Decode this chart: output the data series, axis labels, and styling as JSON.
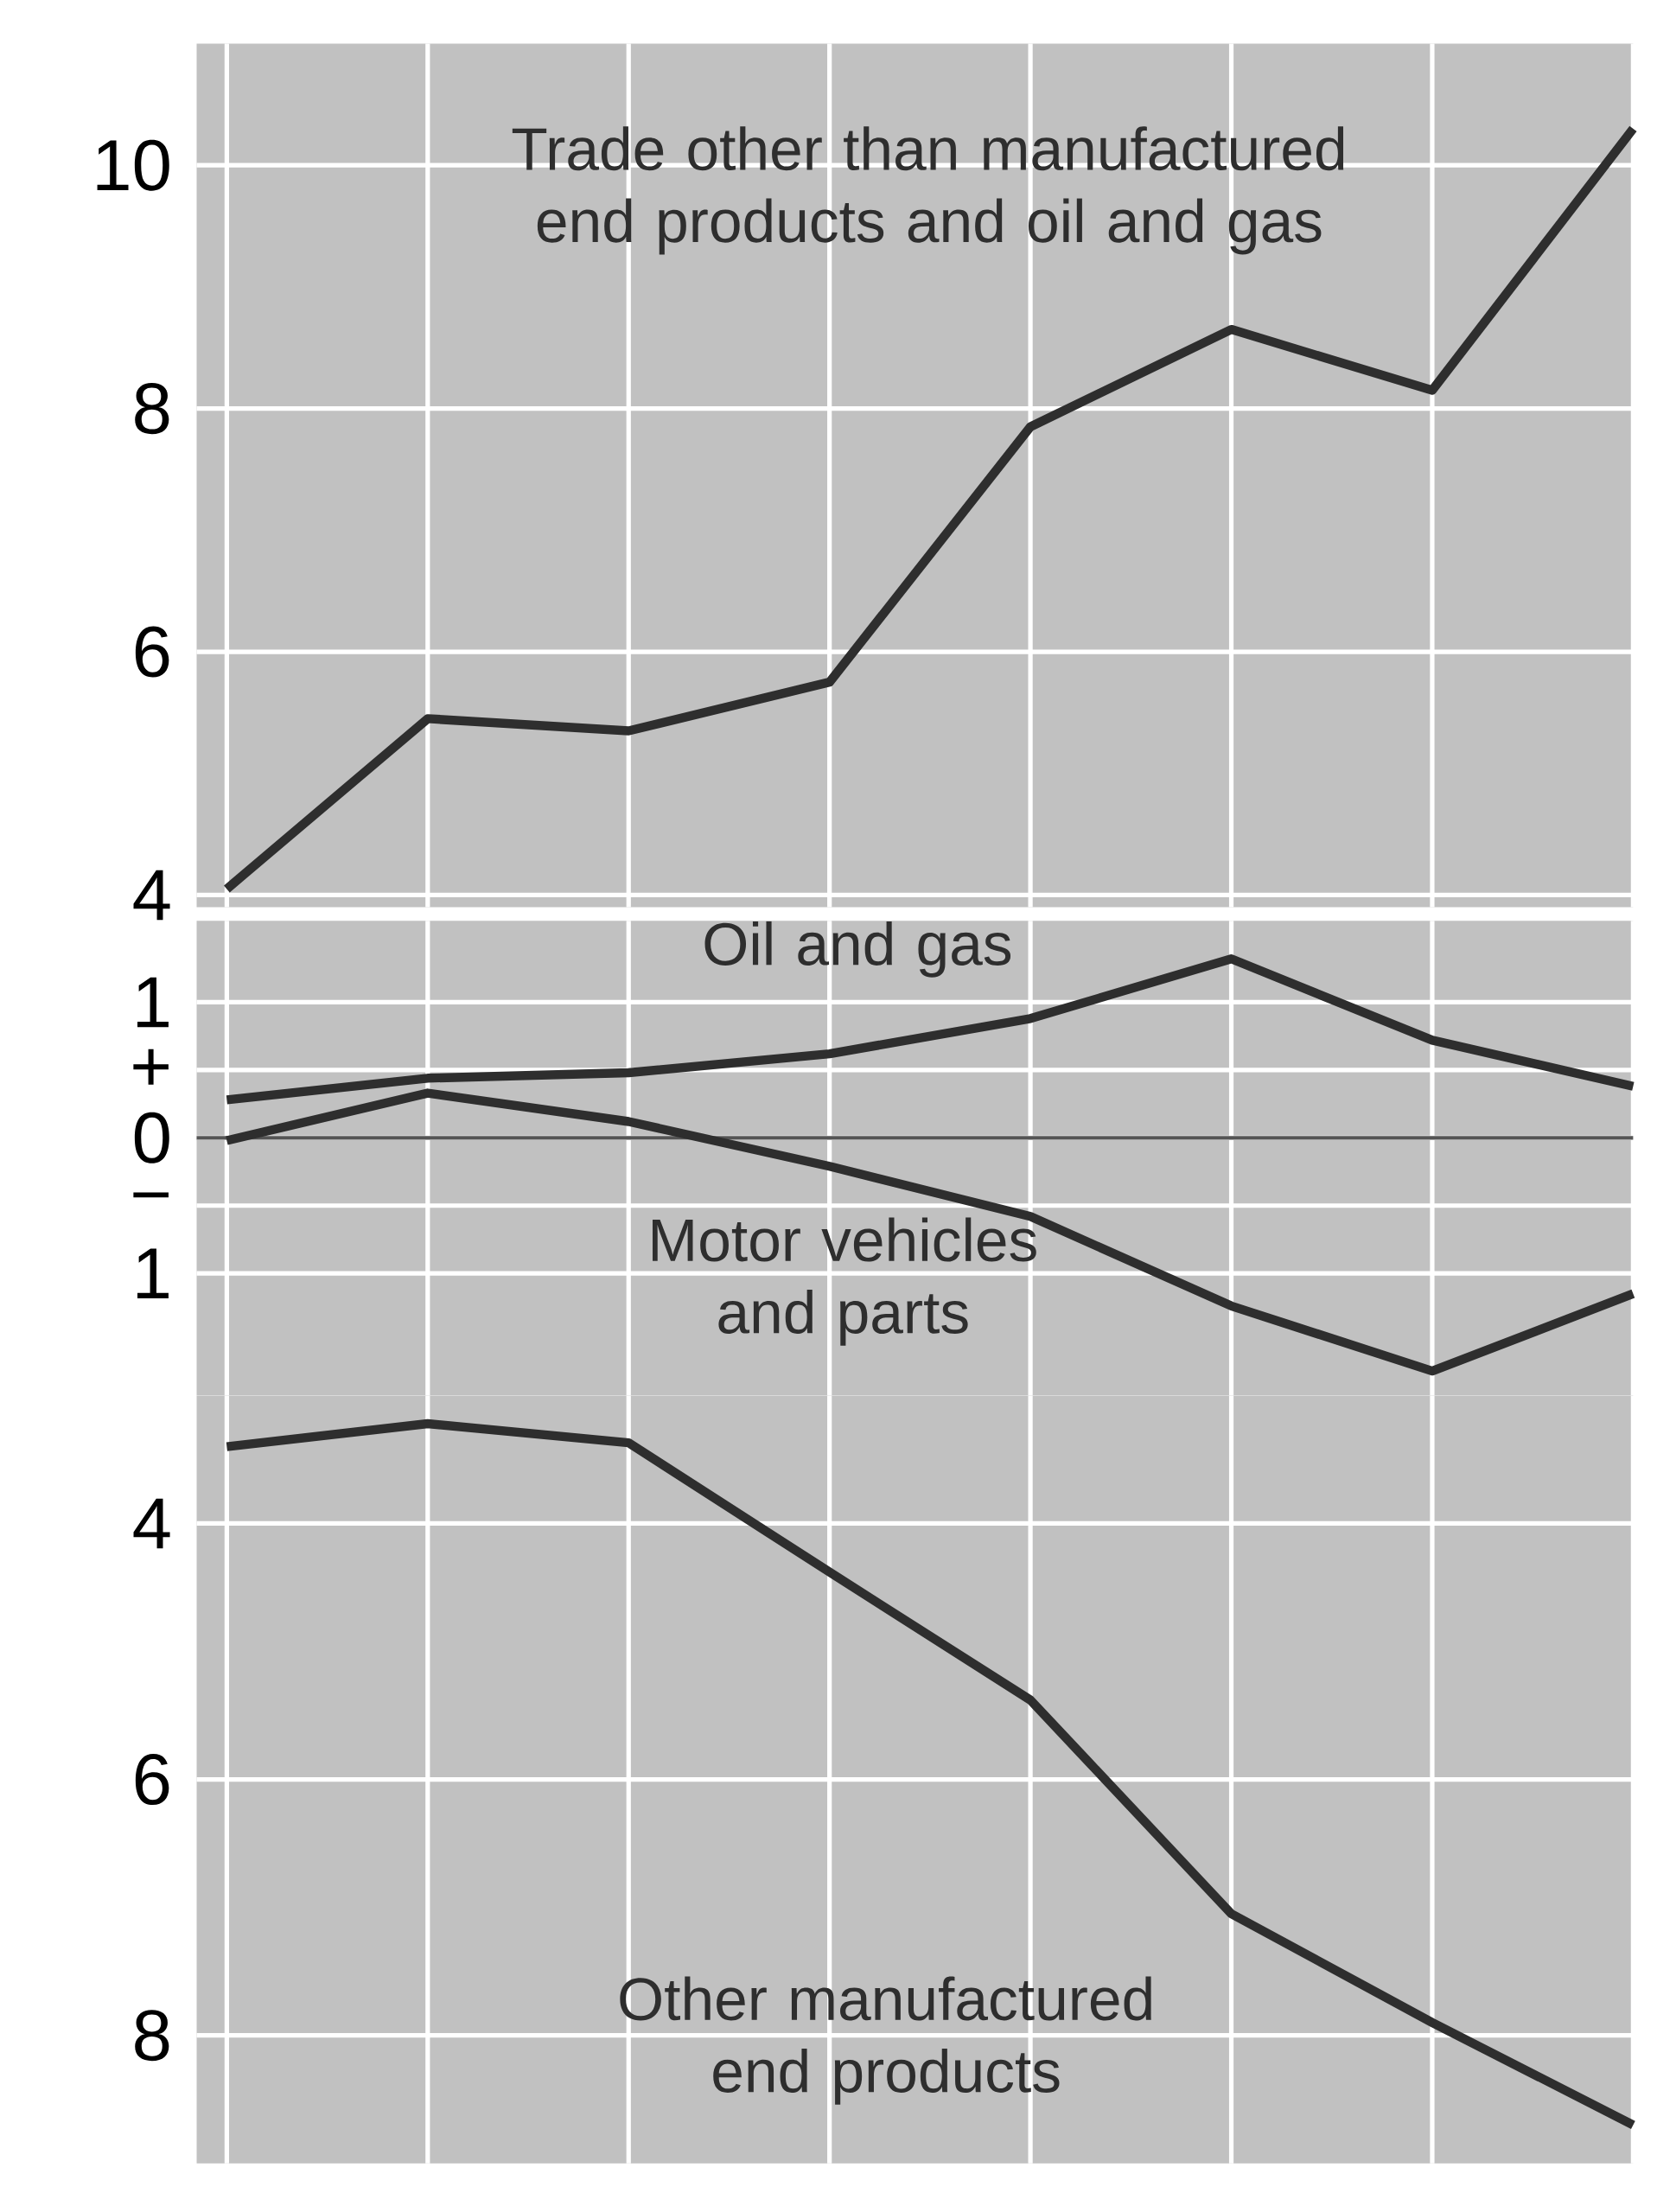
{
  "chart_data": [
    {
      "type": "line",
      "categories": [
        null,
        null,
        null,
        null,
        null,
        null,
        null,
        null
      ],
      "series": [
        {
          "name": "Trade other than manufactured end products and oil and gas",
          "color": "#2e2e2e",
          "values": [
            4.05,
            5.45,
            5.35,
            5.75,
            7.85,
            8.65,
            8.15,
            10.3
          ]
        }
      ],
      "ylim": [
        3.9,
        11
      ],
      "yticks": [
        4,
        6,
        8,
        10
      ],
      "grid": true
    },
    {
      "type": "line",
      "categories": [
        null,
        null,
        null,
        null,
        null,
        null,
        null,
        null
      ],
      "series": [
        {
          "name": "Oil and gas",
          "color": "#2e2e2e",
          "values": [
            0.28,
            0.44,
            0.48,
            0.62,
            0.88,
            1.32,
            0.72,
            0.38
          ]
        },
        {
          "name": "Motor vehicles and parts",
          "color": "#2e2e2e",
          "values": [
            -0.02,
            0.33,
            0.12,
            -0.21,
            -0.58,
            -1.24,
            -1.72,
            -1.15
          ]
        }
      ],
      "ylim": [
        -1.9,
        1.6
      ],
      "yticks": [
        1,
        {
          "value": 0.5,
          "label": "+"
        },
        0,
        {
          "value": -0.5,
          "label": "−"
        },
        {
          "value": -1,
          "label": "1"
        }
      ],
      "ref_lines": [
        {
          "axis": "y",
          "value": 0,
          "color": "#555555"
        }
      ],
      "grid": true
    },
    {
      "type": "line",
      "categories": [
        null,
        null,
        null,
        null,
        null,
        null,
        null,
        null
      ],
      "series": [
        {
          "name": "Other manufactured end products",
          "color": "#2e2e2e",
          "values": [
            3.4,
            3.22,
            3.37,
            4.38,
            5.38,
            7.05,
            7.9,
            8.7
          ]
        }
      ],
      "ylim": [
        9,
        3
      ],
      "yticks": [
        4,
        6,
        8
      ],
      "grid": true
    }
  ]
}
